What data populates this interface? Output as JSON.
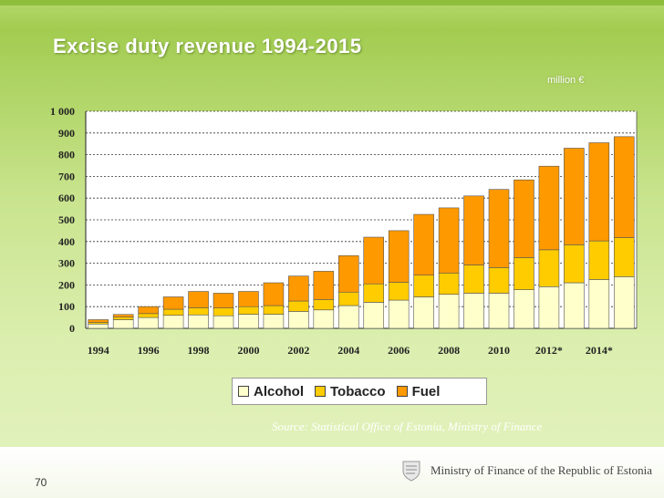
{
  "slide": {
    "title": "Excise duty revenue 1994-2015",
    "unit": "million €",
    "source": "Source: Statistical Office of Estonia, Ministry of Finance",
    "page_number": "70",
    "ministry": "Ministry of Finance of the Republic of Estonia",
    "crest_icon": "coat-of-arms-icon"
  },
  "chart_data": {
    "type": "bar",
    "stacked": true,
    "categories": [
      "1994",
      "1995",
      "1996",
      "1997",
      "1998",
      "1999",
      "2000",
      "2001",
      "2002",
      "2003",
      "2004",
      "2005",
      "2006",
      "2007",
      "2008",
      "2009",
      "2010",
      "2011",
      "2012*",
      "2013*",
      "2014*",
      "2015*"
    ],
    "x_tick_labels": [
      "1994",
      "",
      "1996",
      "",
      "1998",
      "",
      "2000",
      "",
      "2002",
      "",
      "2004",
      "",
      "2006",
      "",
      "2008",
      "",
      "2010",
      "",
      "2012*",
      "",
      "2014*",
      ""
    ],
    "y_ticks": [
      0,
      100,
      200,
      300,
      400,
      500,
      600,
      700,
      800,
      900,
      1000
    ],
    "y_tick_labels": [
      "0",
      "100",
      "200",
      "300",
      "400",
      "500",
      "600",
      "700",
      "800",
      "900",
      "1 000"
    ],
    "ylim": [
      0,
      1000
    ],
    "grid": "horizontal-dashed",
    "legend_position": "bottom",
    "series": [
      {
        "name": "Alcohol",
        "color": "#ffffcc",
        "values": [
          20,
          40,
          50,
          60,
          62,
          58,
          65,
          65,
          78,
          85,
          105,
          120,
          130,
          145,
          157,
          162,
          162,
          178,
          192,
          210,
          225,
          238
        ]
      },
      {
        "name": "Tobacco",
        "color": "#ffcc00",
        "values": [
          8,
          12,
          18,
          28,
          33,
          36,
          35,
          40,
          48,
          48,
          62,
          85,
          82,
          100,
          98,
          130,
          118,
          148,
          170,
          175,
          178,
          180
        ]
      },
      {
        "name": "Fuel",
        "color": "#ff9900",
        "values": [
          12,
          12,
          32,
          57,
          75,
          68,
          70,
          105,
          115,
          130,
          168,
          215,
          238,
          280,
          300,
          318,
          360,
          358,
          385,
          445,
          452,
          465
        ]
      }
    ]
  }
}
